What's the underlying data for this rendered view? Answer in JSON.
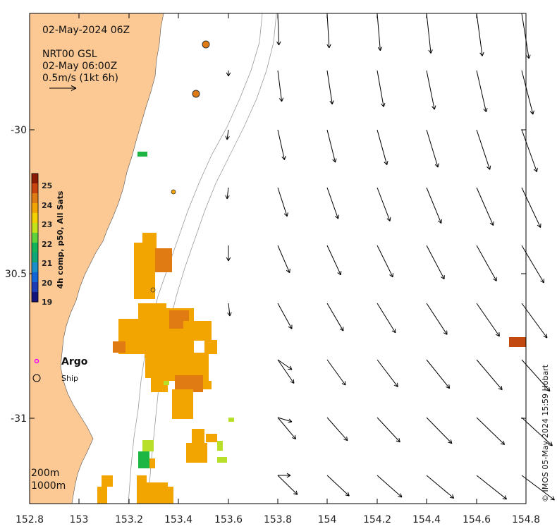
{
  "header": {
    "date_title": "02-May-2024 06Z",
    "source": "NRT00 GSL",
    "time": "02-May 06:00Z",
    "scale_label": "0.5m/s (1kt 6h)"
  },
  "axes": {
    "x_ticks": [
      "152.8",
      "153",
      "153.2",
      "153.4",
      "153.6",
      "153.8",
      "154",
      "154.2",
      "154.4",
      "154.6",
      "154.8"
    ],
    "y_ticks": [
      "-30",
      "30.5",
      "-31"
    ]
  },
  "colorbar": {
    "label": "4h comp, p50, All Sats",
    "ticks": [
      "25",
      "24",
      "23",
      "22",
      "21",
      "20",
      "19"
    ],
    "colors": [
      "#8b1a00",
      "#c8430d",
      "#e07a12",
      "#f2a500",
      "#f5d000",
      "#c4e21a",
      "#5fd23c",
      "#14b25a",
      "#10a67a",
      "#1a8ec8",
      "#1466d6",
      "#1e3cb4",
      "#14147a"
    ]
  },
  "legend": {
    "argo_label": "Argo",
    "ship_label": "Ship",
    "argo_color": "#ff00ff"
  },
  "isobaths": {
    "label_200": "200m",
    "label_1000": "1000m"
  },
  "credit": "© IMOS 05-May-2024 15:59 Hobart",
  "colors": {
    "land": "#fcc995",
    "sst_main": "#f2a500",
    "sst_warm": "#e07a12",
    "sst_hot": "#c24a10",
    "sst_green": "#1db544",
    "sst_lime": "#b8e02a",
    "vector": "#000000"
  }
}
